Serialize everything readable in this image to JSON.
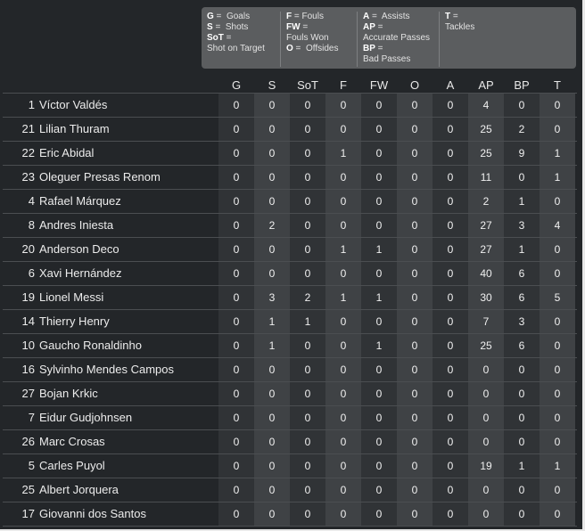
{
  "legend": {
    "col1": [
      {
        "key": "G",
        "sep": " =  ",
        "text": "Goals"
      },
      {
        "key": "S",
        "sep": " =  ",
        "text": "Shots"
      },
      {
        "key": "SoT",
        "sep": " =",
        "text": ""
      },
      {
        "key": "",
        "sep": "",
        "text": "Shot on Target"
      }
    ],
    "col2": [
      {
        "key": "F",
        "sep": " = ",
        "text": "Fouls"
      },
      {
        "key": "FW",
        "sep": " =",
        "text": ""
      },
      {
        "key": "",
        "sep": "",
        "text": "Fouls Won"
      },
      {
        "key": "O",
        "sep": " =  ",
        "text": "Offsides"
      }
    ],
    "col3": [
      {
        "key": "A",
        "sep": " =  ",
        "text": "Assists"
      },
      {
        "key": "AP",
        "sep": " =",
        "text": ""
      },
      {
        "key": "",
        "sep": "",
        "text": "Accurate Passes"
      },
      {
        "key": "BP",
        "sep": " =",
        "text": ""
      },
      {
        "key": "",
        "sep": "",
        "text": "Bad Passes"
      }
    ],
    "col4": [
      {
        "key": "T",
        "sep": " =",
        "text": ""
      },
      {
        "key": "",
        "sep": "",
        "text": "Tackles"
      }
    ]
  },
  "columns": [
    "G",
    "S",
    "SoT",
    "F",
    "FW",
    "O",
    "A",
    "AP",
    "BP",
    "T"
  ],
  "players": [
    {
      "num": "1",
      "name": "Víctor Valdés",
      "stats": [
        "0",
        "0",
        "0",
        "0",
        "0",
        "0",
        "0",
        "4",
        "0",
        "0"
      ]
    },
    {
      "num": "21",
      "name": "Lilian Thuram",
      "stats": [
        "0",
        "0",
        "0",
        "0",
        "0",
        "0",
        "0",
        "25",
        "2",
        "0"
      ]
    },
    {
      "num": "22",
      "name": "Eric Abidal",
      "stats": [
        "0",
        "0",
        "0",
        "1",
        "0",
        "0",
        "0",
        "25",
        "9",
        "1"
      ]
    },
    {
      "num": "23",
      "name": "Oleguer Presas Renom",
      "stats": [
        "0",
        "0",
        "0",
        "0",
        "0",
        "0",
        "0",
        "11",
        "0",
        "1"
      ]
    },
    {
      "num": "4",
      "name": "Rafael Márquez",
      "stats": [
        "0",
        "0",
        "0",
        "0",
        "0",
        "0",
        "0",
        "2",
        "1",
        "0"
      ]
    },
    {
      "num": "8",
      "name": "Andres Iniesta",
      "stats": [
        "0",
        "2",
        "0",
        "0",
        "0",
        "0",
        "0",
        "27",
        "3",
        "4"
      ]
    },
    {
      "num": "20",
      "name": "Anderson Deco",
      "stats": [
        "0",
        "0",
        "0",
        "1",
        "1",
        "0",
        "0",
        "27",
        "1",
        "0"
      ]
    },
    {
      "num": "6",
      "name": "Xavi Hernández",
      "stats": [
        "0",
        "0",
        "0",
        "0",
        "0",
        "0",
        "0",
        "40",
        "6",
        "0"
      ]
    },
    {
      "num": "19",
      "name": "Lionel Messi",
      "stats": [
        "0",
        "3",
        "2",
        "1",
        "1",
        "0",
        "0",
        "30",
        "6",
        "5"
      ]
    },
    {
      "num": "14",
      "name": "Thierry Henry",
      "stats": [
        "0",
        "1",
        "1",
        "0",
        "0",
        "0",
        "0",
        "7",
        "3",
        "0"
      ]
    },
    {
      "num": "10",
      "name": "Gaucho Ronaldinho",
      "stats": [
        "0",
        "1",
        "0",
        "0",
        "1",
        "0",
        "0",
        "25",
        "6",
        "0"
      ]
    },
    {
      "num": "16",
      "name": "Sylvinho Mendes Campos",
      "stats": [
        "0",
        "0",
        "0",
        "0",
        "0",
        "0",
        "0",
        "0",
        "0",
        "0"
      ]
    },
    {
      "num": "27",
      "name": "Bojan Krkic",
      "stats": [
        "0",
        "0",
        "0",
        "0",
        "0",
        "0",
        "0",
        "0",
        "0",
        "0"
      ]
    },
    {
      "num": "7",
      "name": "Eidur Gudjohnsen",
      "stats": [
        "0",
        "0",
        "0",
        "0",
        "0",
        "0",
        "0",
        "0",
        "0",
        "0"
      ]
    },
    {
      "num": "26",
      "name": "Marc Crosas",
      "stats": [
        "0",
        "0",
        "0",
        "0",
        "0",
        "0",
        "0",
        "0",
        "0",
        "0"
      ]
    },
    {
      "num": "5",
      "name": "Carles Puyol",
      "stats": [
        "0",
        "0",
        "0",
        "0",
        "0",
        "0",
        "0",
        "19",
        "1",
        "1"
      ]
    },
    {
      "num": "25",
      "name": "Albert Jorquera",
      "stats": [
        "0",
        "0",
        "0",
        "0",
        "0",
        "0",
        "0",
        "0",
        "0",
        "0"
      ]
    },
    {
      "num": "17",
      "name": "Giovanni dos Santos",
      "stats": [
        "0",
        "0",
        "0",
        "0",
        "0",
        "0",
        "0",
        "0",
        "0",
        "0"
      ]
    }
  ]
}
